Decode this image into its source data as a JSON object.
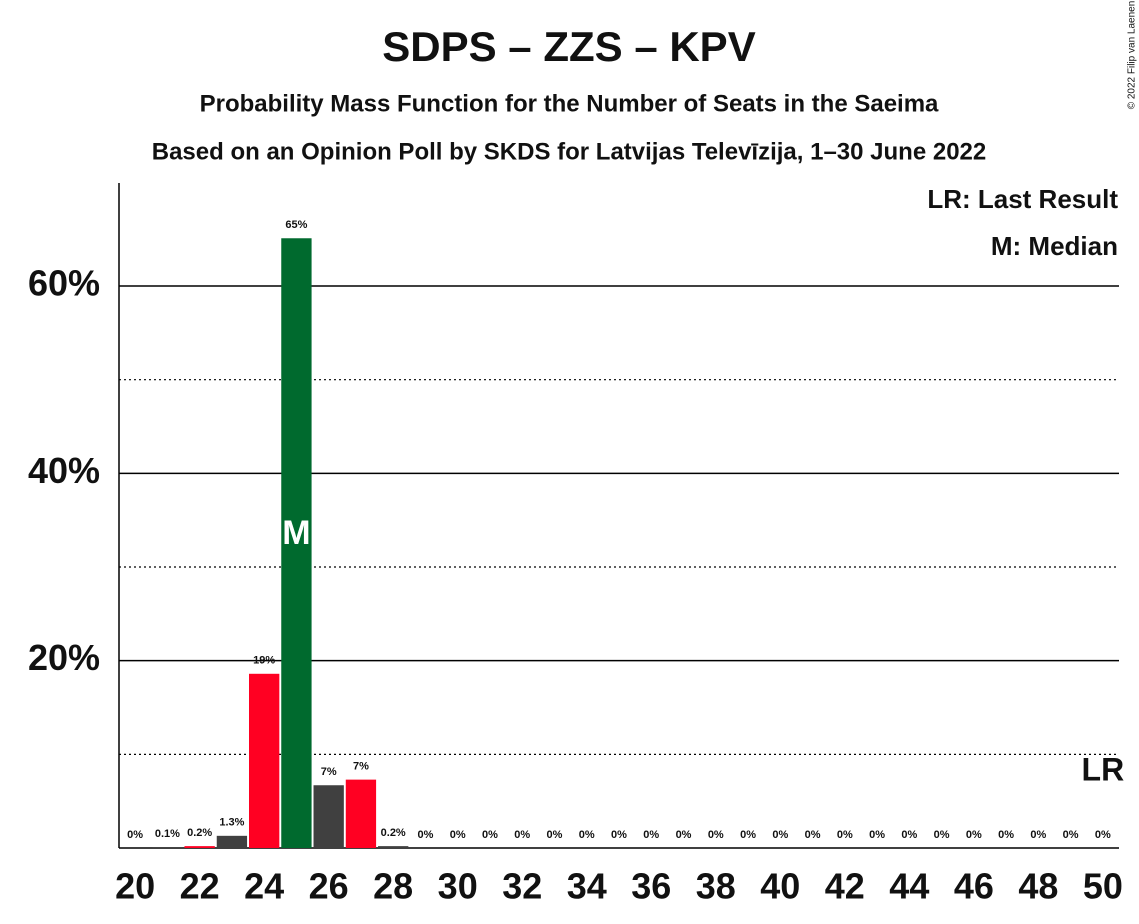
{
  "chart_data": {
    "type": "bar",
    "title": "SDPS – ZZS – KPV",
    "subtitle": "Probability Mass Function for the Number of Seats in the Saeima",
    "subtitle2": "Based on an Opinion Poll by SKDS for Latvijas Televīzija, 1–30 June 2022",
    "legend": [
      "LR: Last Result",
      "M: Median"
    ],
    "copyright": "© 2022 Filip van Laenen",
    "x": [
      20,
      21,
      22,
      23,
      24,
      25,
      26,
      27,
      28,
      29,
      30,
      31,
      32,
      33,
      34,
      35,
      36,
      37,
      38,
      39,
      40,
      41,
      42,
      43,
      44,
      45,
      46,
      47,
      48,
      49,
      50
    ],
    "values": [
      0,
      0.1,
      0.2,
      1.3,
      18.6,
      65.1,
      6.7,
      7.3,
      0.2,
      0,
      0,
      0,
      0,
      0,
      0,
      0,
      0,
      0,
      0,
      0,
      0,
      0,
      0,
      0,
      0,
      0,
      0,
      0,
      0,
      0,
      0
    ],
    "value_labels": [
      "0%",
      "0.1%",
      "0.2%",
      "1.3%",
      "19%",
      "65%",
      "7%",
      "7%",
      "0.2%",
      "0%",
      "0%",
      "0%",
      "0%",
      "0%",
      "0%",
      "0%",
      "0%",
      "0%",
      "0%",
      "0%",
      "0%",
      "0%",
      "0%",
      "0%",
      "0%",
      "0%",
      "0%",
      "0%",
      "0%",
      "0%",
      "0%"
    ],
    "colors": [
      "#ff0022",
      "#404040",
      "#ff0022",
      "#404040",
      "#ff0022",
      "#006a2e",
      "#404040",
      "#ff0022",
      "#404040",
      "#ff0022",
      "#404040",
      "#ff0022",
      "#404040",
      "#ff0022",
      "#404040",
      "#ff0022",
      "#404040",
      "#ff0022",
      "#404040",
      "#ff0022",
      "#404040",
      "#ff0022",
      "#404040",
      "#ff0022",
      "#404040",
      "#ff0022",
      "#404040",
      "#ff0022",
      "#404040",
      "#ff0022",
      "#404040"
    ],
    "median": 25,
    "median_label": "M",
    "last_result": 50,
    "last_result_label": "LR",
    "xlim": [
      19.5,
      50.5
    ],
    "xticks": [
      20,
      22,
      24,
      26,
      28,
      30,
      32,
      34,
      36,
      38,
      40,
      42,
      44,
      46,
      48,
      50
    ],
    "ylim": [
      0,
      71
    ],
    "yticks": [
      {
        "value": 20,
        "label": "20%"
      },
      {
        "value": 40,
        "label": "40%"
      },
      {
        "value": 60,
        "label": "60%"
      }
    ],
    "minor_yticks": [
      10,
      30,
      50
    ],
    "grid": true
  }
}
